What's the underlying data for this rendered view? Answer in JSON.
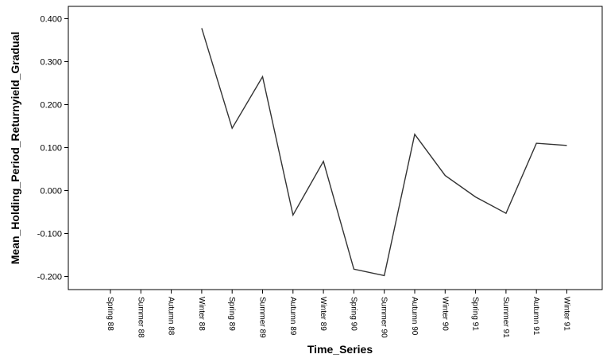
{
  "chart_data": {
    "type": "line",
    "title": "",
    "xlabel": "Time_Series",
    "ylabel": "Mean_Holding_Period_Returnyield_Gradual",
    "categories": [
      "Spring 88",
      "Summer 88",
      "Autumn 88",
      "Winter 88",
      "Spring 89",
      "Summer 89",
      "Autumn 89",
      "Winter 89",
      "Spring 90",
      "Summer 90",
      "Autumn 90",
      "Winter 90",
      "Spring 91",
      "Summer 91",
      "Autumn 91",
      "Winter 91"
    ],
    "series": [
      {
        "values": [
          null,
          null,
          null,
          0.378,
          0.145,
          0.265,
          -0.057,
          0.068,
          -0.183,
          -0.198,
          0.131,
          0.035,
          -0.015,
          -0.053,
          0.11,
          0.105
        ]
      }
    ],
    "yticks": [
      "0.400",
      "0.300",
      "0.200",
      "0.100",
      "0.000",
      "-0.100",
      "-0.200"
    ],
    "ylim": [
      -0.23,
      0.43
    ],
    "grid": false,
    "colors": {
      "line": "#333333",
      "axis": "#000000",
      "background": "#ffffff"
    }
  }
}
